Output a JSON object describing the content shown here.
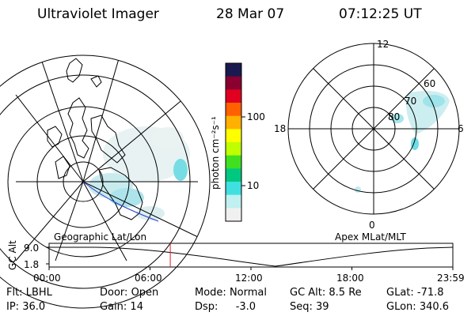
{
  "header": {
    "title": "Ultraviolet Imager",
    "date": "28 Mar 07",
    "time": "07:12:25 UT"
  },
  "colorbar": {
    "unit_label": "photon cm⁻²s⁻¹",
    "tick_labels": [
      "100",
      "10"
    ],
    "colors": [
      "#1a1a50",
      "#8a0030",
      "#e00020",
      "#ff6000",
      "#ffb000",
      "#ffff00",
      "#c0ff00",
      "#40e020",
      "#00c880",
      "#40e0e0",
      "#c0f0f0",
      "#f0f0f0"
    ]
  },
  "left_map": {
    "caption": "Geographic Lat/Lon"
  },
  "right_map": {
    "caption": "Apex MLat/MLT",
    "mlt_labels": [
      "12",
      "18",
      "6",
      "0"
    ],
    "lat_labels": [
      "60",
      "70",
      "80"
    ]
  },
  "timeline": {
    "ylabel": "GC Alt",
    "y_ticks": [
      "9.0",
      "1.8"
    ],
    "x_ticks": [
      "00:00",
      "06:00",
      "12:00",
      "18:00",
      "23:59"
    ],
    "current_time_fraction": 0.3002
  },
  "info": {
    "flt_label": "Flt:",
    "flt_value": "LBHL",
    "ip_label": "IP:",
    "ip_value": "36.0",
    "door_label": "Door:",
    "door_value": "Open",
    "gain_label": "Gain:",
    "gain_value": "14",
    "mode_label": "Mode:",
    "mode_value": "Normal",
    "dsp_label": "Dsp:",
    "dsp_value": "-3.0",
    "gcalt_label": "GC Alt:",
    "gcalt_value": "8.5 Re",
    "seq_label": "Seq:",
    "seq_value": "39",
    "glat_label": "GLat:",
    "glat_value": "-71.8",
    "glon_label": "GLon:",
    "glon_value": "340.6"
  }
}
